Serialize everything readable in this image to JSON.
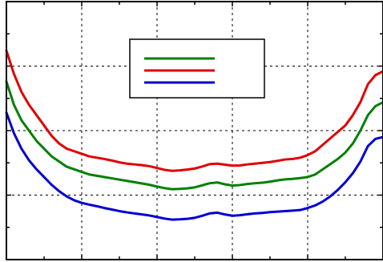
{
  "chart_data": {
    "type": "line",
    "title": "",
    "xlabel": "",
    "ylabel": "",
    "xlim": [
      0,
      100
    ],
    "ylim": [
      0,
      100
    ],
    "x_tick_count": 5,
    "y_tick_count": 4,
    "grid": true,
    "legend_placement": "top-center",
    "x": [
      0,
      2,
      4,
      6,
      8,
      10,
      12,
      14,
      16,
      18,
      20,
      22,
      24,
      26,
      28,
      30,
      32,
      34,
      36,
      38,
      40,
      42,
      44,
      46,
      48,
      50,
      52,
      54,
      56,
      58,
      60,
      62,
      64,
      66,
      68,
      70,
      72,
      74,
      76,
      78,
      80,
      82,
      84,
      86,
      88,
      90,
      92,
      94,
      96,
      98,
      100
    ],
    "series": [
      {
        "color": "#008000",
        "values": [
          69,
          60,
          54,
          50,
          46,
          43,
          40,
          38,
          36,
          35,
          34,
          33,
          32.5,
          32,
          31.5,
          31,
          30.5,
          30,
          29.5,
          29,
          28.3,
          27.7,
          27.3,
          27.4,
          27.6,
          28,
          28.8,
          29.6,
          29.9,
          29.2,
          28.7,
          28.9,
          29.3,
          29.6,
          29.8,
          30.2,
          30.7,
          31.1,
          31.3,
          31.6,
          32,
          33,
          35,
          37,
          39,
          41.5,
          45,
          50,
          56,
          59.5,
          61
        ]
      },
      {
        "color": "#e00000",
        "values": [
          81,
          72,
          65,
          60,
          56,
          52,
          48,
          45,
          43,
          42,
          41,
          40,
          39.5,
          39,
          38.4,
          37.7,
          37.2,
          36.9,
          36.6,
          36.2,
          35.5,
          34.8,
          34.4,
          34.6,
          34.9,
          35.3,
          36.1,
          37,
          37.2,
          36.8,
          36.4,
          36.5,
          36.9,
          37.2,
          37.5,
          37.8,
          38.3,
          38.8,
          39,
          39.5,
          40.5,
          42,
          44.5,
          47,
          49.5,
          52,
          56,
          61,
          68,
          71.5,
          73
        ]
      },
      {
        "color": "#0000d0",
        "values": [
          57,
          49,
          43,
          38.5,
          35,
          32,
          29,
          26.5,
          24.5,
          23,
          22,
          21.3,
          20.7,
          20,
          19.4,
          18.8,
          18.3,
          17.9,
          17.5,
          17.1,
          16.5,
          15.9,
          15.5,
          15.6,
          15.8,
          16.2,
          17,
          17.9,
          18.2,
          17.5,
          17,
          17.2,
          17.6,
          17.9,
          18.1,
          18.4,
          18.6,
          18.8,
          19,
          19.2,
          20,
          21,
          22.5,
          24.5,
          27,
          30,
          33.5,
          38,
          44,
          46.8,
          47.5
        ]
      }
    ]
  },
  "legend": {
    "entries": [
      {
        "color": "#008000"
      },
      {
        "color": "#e00000"
      },
      {
        "color": "#0000d0"
      }
    ]
  }
}
